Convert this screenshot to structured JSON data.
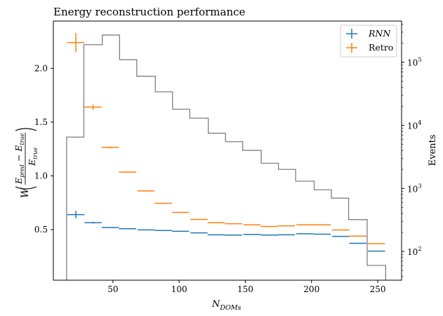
{
  "chart_data": {
    "type": "errorbar+histogram",
    "title": "Energy reconstruction performance",
    "xlabel_parts": {
      "base": "N",
      "sub": "DOMs"
    },
    "ylabel": "W((E_pred − E_true)/E_true)",
    "ylabel_parts": {
      "W": "W",
      "num_a": "E",
      "num_a_sub": "pred",
      "minus": "−",
      "num_b": "E",
      "num_b_sub": "true",
      "den": "E",
      "den_sub": "true"
    },
    "y2label": "Events",
    "xlim": [
      5,
      268
    ],
    "ylim": [
      0.03,
      2.44
    ],
    "y2lim_log": [
      35,
      450000
    ],
    "x_ticks": [
      50,
      100,
      150,
      200,
      250
    ],
    "x_tick_labels": [
      "50",
      "100",
      "150",
      "200",
      "250"
    ],
    "y_ticks": [
      0.5,
      1.0,
      1.5,
      2.0
    ],
    "y_tick_labels": [
      "0.5",
      "1.0",
      "1.5",
      "2.0"
    ],
    "y2_ticks": [
      100,
      1000,
      10000,
      100000
    ],
    "y2_tick_labels": [
      {
        "base": "10",
        "exp": "2"
      },
      {
        "base": "10",
        "exp": "3"
      },
      {
        "base": "10",
        "exp": "4"
      },
      {
        "base": "10",
        "exp": "5"
      }
    ],
    "legend": {
      "placement": "top-right",
      "entries": [
        {
          "label": "RNN",
          "color": "#1f77b4"
        },
        {
          "label": "Retro",
          "color": "#ff7f0e"
        }
      ]
    },
    "series": [
      {
        "name": "RNN",
        "color": "#1f77b4",
        "x": [
          22,
          35,
          48,
          61,
          75,
          88,
          101,
          115,
          128,
          141,
          155,
          168,
          181,
          195,
          208,
          222,
          235,
          249
        ],
        "xerr": 6.5,
        "y": [
          0.64,
          0.565,
          0.52,
          0.508,
          0.498,
          0.492,
          0.485,
          0.47,
          0.452,
          0.45,
          0.455,
          0.45,
          0.452,
          0.462,
          0.458,
          0.437,
          0.373,
          0.3
        ],
        "yerr": [
          0.035,
          0.008,
          0.004,
          0.004,
          0.004,
          0.004,
          0.004,
          0.004,
          0.004,
          0.004,
          0.004,
          0.004,
          0.004,
          0.004,
          0.004,
          0.004,
          0.004,
          0.004
        ]
      },
      {
        "name": "Retro",
        "color": "#ff7f0e",
        "x": [
          22,
          35,
          48,
          61,
          75,
          88,
          101,
          115,
          128,
          141,
          155,
          168,
          181,
          195,
          208,
          222,
          235,
          249
        ],
        "xerr": 6.5,
        "y": [
          2.24,
          1.64,
          1.265,
          1.035,
          0.86,
          0.745,
          0.66,
          0.595,
          0.565,
          0.555,
          0.545,
          0.53,
          0.535,
          0.545,
          0.545,
          0.497,
          0.44,
          0.37
        ],
        "yerr": [
          0.09,
          0.025,
          0.008,
          0.005,
          0.005,
          0.004,
          0.004,
          0.004,
          0.004,
          0.004,
          0.004,
          0.004,
          0.004,
          0.004,
          0.004,
          0.004,
          0.004,
          0.004
        ]
      }
    ],
    "histogram": {
      "name": "Events",
      "color": "#808080",
      "bin_edges": [
        15,
        28,
        42,
        55,
        68,
        82,
        95,
        108,
        122,
        135,
        148,
        162,
        175,
        188,
        202,
        215,
        228,
        242,
        256
      ],
      "counts": [
        6500,
        190000,
        270000,
        110000,
        60000,
        34000,
        18000,
        13000,
        7500,
        5500,
        4000,
        2500,
        2000,
        1300,
        950,
        700,
        320,
        60
      ]
    }
  }
}
